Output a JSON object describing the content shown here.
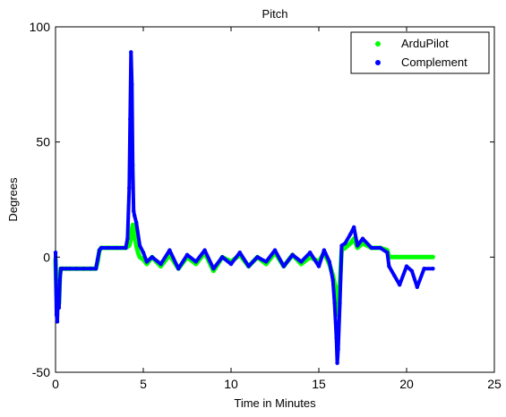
{
  "chart_data": {
    "type": "scatter",
    "title": "Pitch",
    "xlabel": "Time in Minutes",
    "ylabel": "Degrees",
    "xlim": [
      0,
      25
    ],
    "ylim": [
      -50,
      100
    ],
    "xticks": [
      0,
      5,
      10,
      15,
      20,
      25
    ],
    "yticks": [
      -50,
      0,
      50,
      100
    ],
    "grid": false,
    "legend_position": "top-right",
    "series": [
      {
        "name": "ArduPilot",
        "color": "#00ff00",
        "x": [
          0.0,
          0.05,
          0.1,
          0.15,
          0.2,
          0.25,
          0.3,
          0.4,
          0.6,
          0.8,
          1.2,
          1.6,
          2.0,
          2.3,
          2.4,
          2.5,
          2.6,
          3.0,
          3.5,
          4.0,
          4.2,
          4.3,
          4.35,
          4.4,
          4.5,
          4.6,
          4.7,
          4.8,
          5.0,
          5.2,
          5.5,
          6.0,
          6.5,
          7.0,
          7.5,
          8.0,
          8.5,
          9.0,
          9.5,
          10.0,
          10.5,
          11.0,
          11.5,
          12.0,
          12.5,
          13.0,
          13.5,
          14.0,
          14.5,
          15.0,
          15.3,
          15.6,
          15.8,
          16.0,
          16.1,
          16.2,
          16.3,
          16.5,
          16.8,
          17.0,
          17.2,
          17.5,
          18.0,
          18.5,
          18.9,
          19.0,
          19.5,
          20.0,
          20.5,
          21.0,
          21.5
        ],
        "y": [
          -1,
          -15,
          -22,
          -10,
          -20,
          -8,
          -5,
          -5,
          -5,
          -5,
          -5,
          -5,
          -5,
          -5,
          -2,
          3,
          4,
          4,
          4,
          4,
          5,
          8,
          12,
          14,
          10,
          5,
          2,
          0,
          -1,
          -3,
          0,
          -4,
          1,
          -5,
          0,
          -3,
          2,
          -6,
          0,
          -2,
          1,
          -4,
          0,
          -3,
          2,
          -4,
          1,
          -3,
          0,
          -2,
          2,
          -3,
          -8,
          -15,
          -25,
          -12,
          3,
          4,
          6,
          8,
          4,
          6,
          4,
          4,
          3,
          0,
          0,
          0,
          0,
          0,
          0
        ]
      },
      {
        "name": "Complement",
        "color": "#0000ff",
        "x": [
          0.0,
          0.05,
          0.1,
          0.15,
          0.2,
          0.25,
          0.3,
          0.4,
          0.6,
          0.8,
          1.2,
          1.6,
          2.0,
          2.3,
          2.4,
          2.5,
          2.6,
          3.0,
          3.5,
          4.0,
          4.1,
          4.2,
          4.25,
          4.3,
          4.35,
          4.4,
          4.45,
          4.5,
          4.6,
          4.8,
          5.0,
          5.2,
          5.5,
          6.0,
          6.5,
          7.0,
          7.5,
          8.0,
          8.5,
          9.0,
          9.5,
          10.0,
          10.5,
          11.0,
          11.5,
          12.0,
          12.5,
          13.0,
          13.5,
          14.0,
          14.5,
          15.0,
          15.3,
          15.6,
          15.8,
          15.9,
          16.0,
          16.05,
          16.1,
          16.2,
          16.3,
          16.5,
          16.8,
          17.0,
          17.2,
          17.5,
          18.0,
          18.5,
          18.9,
          19.0,
          19.3,
          19.6,
          20.0,
          20.3,
          20.6,
          21.0,
          21.5
        ],
        "y": [
          2,
          -25,
          -28,
          -15,
          -22,
          -10,
          -5,
          -5,
          -5,
          -5,
          -5,
          -5,
          -5,
          -5,
          -1,
          3,
          4,
          4,
          4,
          4,
          8,
          30,
          60,
          89,
          75,
          40,
          20,
          18,
          15,
          5,
          2,
          -2,
          0,
          -3,
          3,
          -5,
          1,
          -2,
          3,
          -5,
          0,
          -3,
          2,
          -4,
          0,
          -2,
          3,
          -4,
          1,
          -2,
          2,
          -4,
          3,
          -2,
          -10,
          -20,
          -35,
          -46,
          -40,
          -20,
          5,
          6,
          10,
          13,
          5,
          8,
          4,
          4,
          2,
          -4,
          -8,
          -12,
          -4,
          -6,
          -13,
          -5,
          -5
        ]
      }
    ]
  }
}
